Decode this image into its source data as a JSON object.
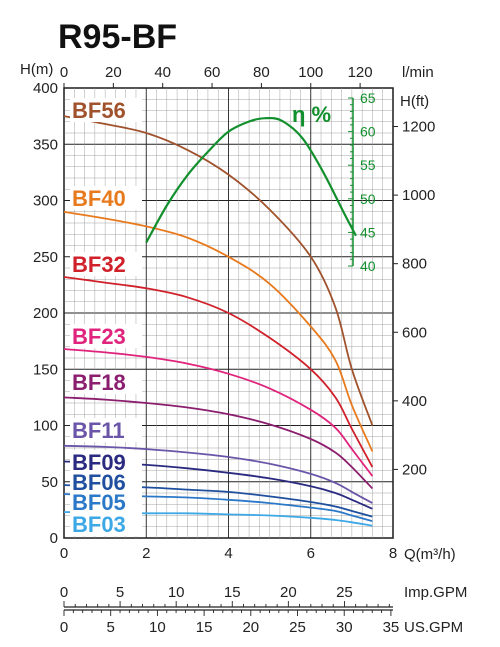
{
  "title": "R95-BF",
  "chart_data": {
    "type": "line",
    "title": "R95-BF",
    "axes": {
      "y_left": {
        "label": "H(m)",
        "range": [
          0,
          400
        ],
        "ticks": [
          "0",
          "50",
          "100",
          "150",
          "200",
          "250",
          "300",
          "350",
          "400"
        ]
      },
      "x_bottom": {
        "label": "Q(m³/h)",
        "range": [
          0,
          8
        ],
        "ticks": [
          "0",
          "2",
          "4",
          "6",
          "8"
        ]
      },
      "x_top": {
        "label": "l/min",
        "range": [
          0,
          133.33
        ],
        "ticks": [
          "0",
          "20",
          "40",
          "60",
          "80",
          "100",
          "120"
        ]
      },
      "y_right": {
        "label": "H(ft)",
        "range": [
          0,
          1312.3
        ],
        "ticks": [
          "200",
          "400",
          "600",
          "800",
          "1000",
          "1200"
        ]
      },
      "efficiency": {
        "label": "η %",
        "range": [
          40,
          65
        ],
        "ticks": [
          "40",
          "45",
          "50",
          "55",
          "60",
          "65"
        ]
      },
      "imp_gpm": {
        "label": "Imp.GPM",
        "range": [
          0,
          29.33
        ],
        "ticks": [
          "0",
          "5",
          "10",
          "15",
          "20",
          "25"
        ]
      },
      "us_gpm": {
        "label": "US.GPM",
        "range": [
          0,
          35.22
        ],
        "ticks": [
          "0",
          "5",
          "10",
          "15",
          "20",
          "25",
          "30",
          "35"
        ]
      }
    },
    "grid": true,
    "series": [
      {
        "name": "BF56",
        "color": "#a0522d",
        "x": [
          0,
          1,
          2,
          3,
          4,
          5,
          6,
          6.6,
          7.0,
          7.5
        ],
        "y": [
          375,
          368,
          360,
          345,
          323,
          292,
          250,
          205,
          150,
          100
        ]
      },
      {
        "name": "BF40",
        "color": "#e87a1e",
        "x": [
          0,
          1,
          2,
          3,
          4,
          5,
          6,
          6.6,
          7.0,
          7.5
        ],
        "y": [
          290,
          284,
          277,
          267,
          250,
          226,
          188,
          158,
          118,
          77
        ]
      },
      {
        "name": "BF32",
        "color": "#d0202a",
        "x": [
          0,
          1,
          2,
          3,
          4,
          5,
          6,
          6.6,
          7.0,
          7.5
        ],
        "y": [
          232,
          227,
          222,
          214,
          200,
          178,
          150,
          125,
          97,
          63
        ]
      },
      {
        "name": "BF23",
        "color": "#e0237c",
        "x": [
          0,
          1,
          2,
          3,
          4,
          5,
          6,
          6.6,
          7.0,
          7.5
        ],
        "y": [
          168,
          165,
          161,
          155,
          146,
          133,
          114,
          98,
          79,
          55
        ]
      },
      {
        "name": "BF18",
        "color": "#8b1e6e",
        "x": [
          0,
          1,
          2,
          3,
          4,
          5,
          6,
          6.6,
          7.0,
          7.5
        ],
        "y": [
          125,
          123,
          120,
          116,
          110,
          101,
          88,
          76,
          63,
          44
        ]
      },
      {
        "name": "BF11",
        "color": "#6a55a8",
        "x": [
          0,
          1,
          2,
          3,
          4,
          5,
          6,
          6.6,
          7.0,
          7.5
        ],
        "y": [
          82,
          81,
          79,
          76,
          72,
          66,
          57,
          49,
          41,
          31
        ]
      },
      {
        "name": "BF09",
        "color": "#2a2a80",
        "x": [
          0,
          1,
          2,
          3,
          4,
          5,
          6,
          6.6,
          7.0,
          7.5
        ],
        "y": [
          68,
          67,
          65,
          62,
          58,
          53,
          46,
          40,
          34,
          26
        ]
      },
      {
        "name": "BF06",
        "color": "#1f4f9e",
        "x": [
          0,
          1,
          2,
          3,
          4,
          5,
          6,
          6.6,
          7.0,
          7.5
        ],
        "y": [
          47,
          46,
          45,
          43,
          41,
          37,
          32,
          28,
          24,
          19
        ]
      },
      {
        "name": "BF05",
        "color": "#2b78c8",
        "x": [
          0,
          1,
          2,
          3,
          4,
          5,
          6,
          6.6,
          7.0,
          7.5
        ],
        "y": [
          39,
          38,
          37,
          36,
          34,
          31,
          27,
          24,
          20,
          15
        ]
      },
      {
        "name": "BF03",
        "color": "#3ca8e6",
        "x": [
          0,
          1,
          2,
          3,
          4,
          5,
          6,
          6.6,
          7.0,
          7.5
        ],
        "y": [
          23,
          23,
          22,
          22,
          21,
          20,
          18,
          16,
          14,
          11
        ]
      }
    ],
    "efficiency_curve": {
      "name": "η %",
      "color": "#13902e",
      "x": [
        2.0,
        2.5,
        3.0,
        3.5,
        4.0,
        4.5,
        4.9,
        5.3,
        5.8,
        6.3,
        6.8,
        7.1
      ],
      "y": [
        43.5,
        49,
        53.5,
        57,
        60,
        61.5,
        62,
        61.6,
        59,
        54,
        48,
        44.5
      ]
    }
  }
}
